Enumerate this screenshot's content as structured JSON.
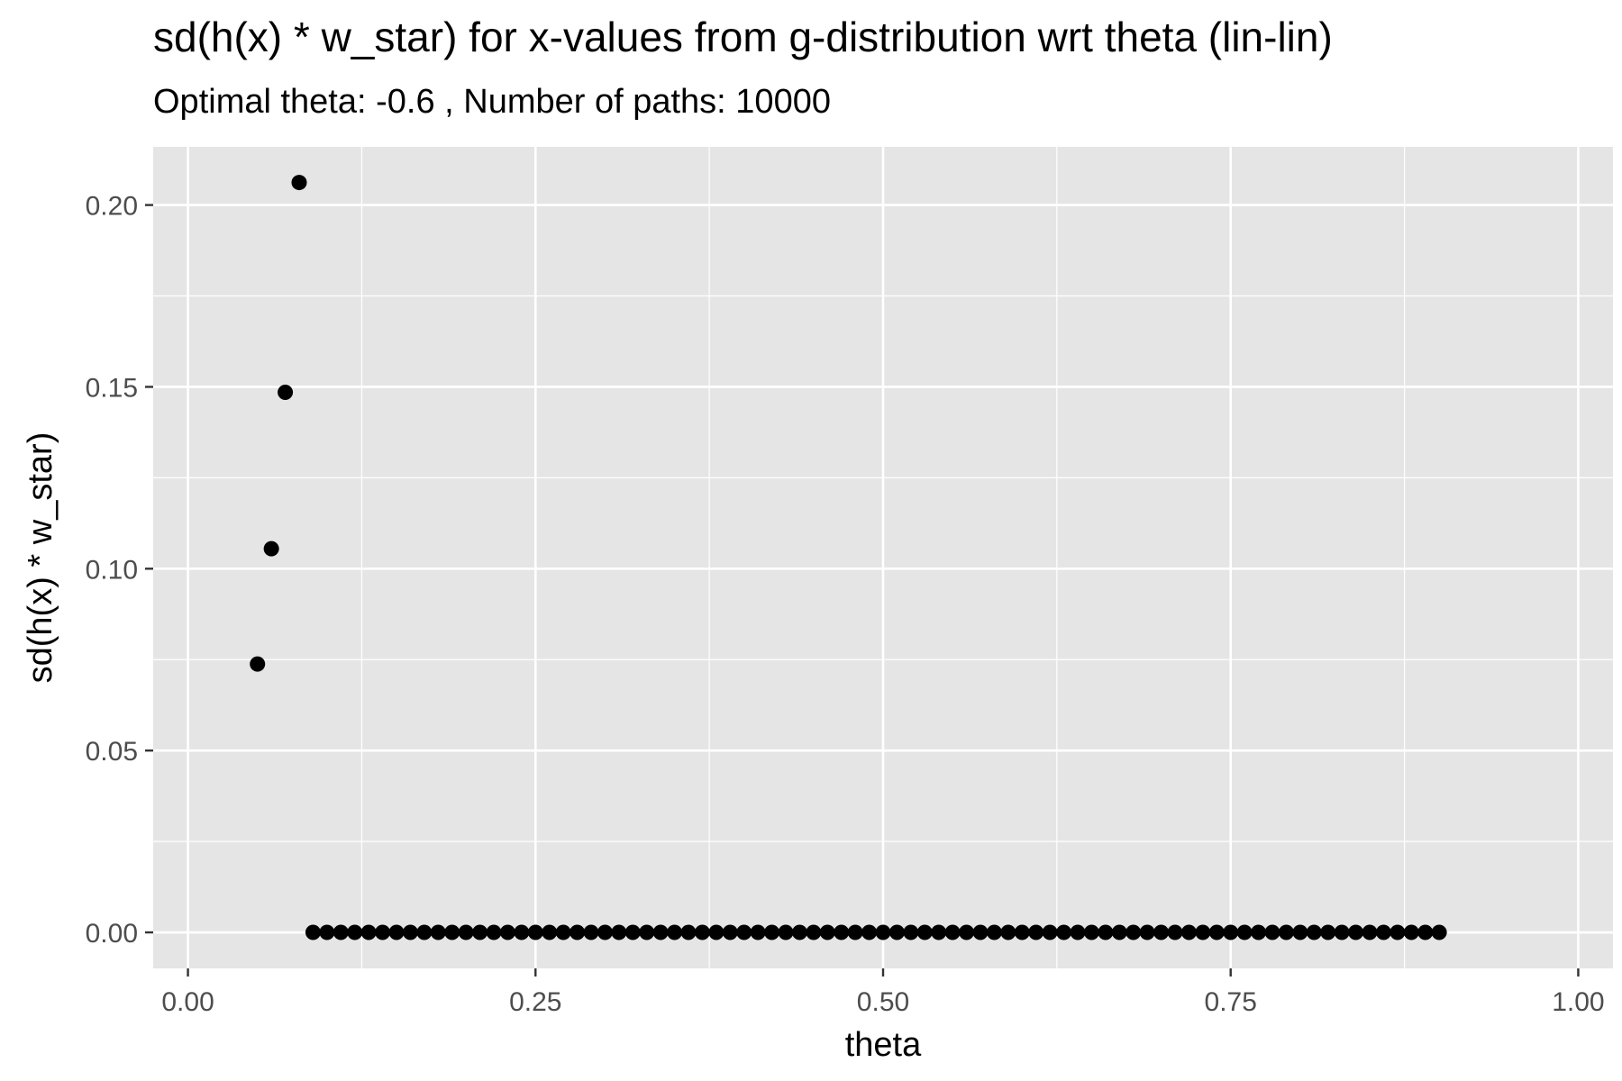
{
  "chart_data": {
    "type": "scatter",
    "title": "sd(h(x) * w_star) for x-values from g-distribution wrt theta (lin-lin)",
    "subtitle": "Optimal theta:  -0.6 , Number of paths:  10000",
    "xlabel": "theta",
    "ylabel": "sd(h(x) * w_star)",
    "xlim": [
      -0.025,
      1.025
    ],
    "ylim": [
      -0.0099,
      0.216
    ],
    "x_ticks": [
      0.0,
      0.25,
      0.5,
      0.75,
      1.0
    ],
    "x_tick_labels": [
      "0.00",
      "0.25",
      "0.50",
      "0.75",
      "1.00"
    ],
    "y_ticks": [
      0.0,
      0.05,
      0.1,
      0.15,
      0.2
    ],
    "y_tick_labels": [
      "0.00",
      "0.05",
      "0.10",
      "0.15",
      "0.20"
    ],
    "grid": true,
    "background": "#e5e5e5",
    "grid_color": "#ffffff",
    "point_color": "#000000",
    "points": [
      {
        "x": 0.05,
        "y": 0.0738
      },
      {
        "x": 0.06,
        "y": 0.1055
      },
      {
        "x": 0.07,
        "y": 0.1485
      },
      {
        "x": 0.08,
        "y": 0.2062
      },
      {
        "x": 0.09,
        "y": 0.0
      },
      {
        "x": 0.1,
        "y": 0.0
      },
      {
        "x": 0.11,
        "y": 0.0
      },
      {
        "x": 0.12,
        "y": 0.0
      },
      {
        "x": 0.13,
        "y": 0.0
      },
      {
        "x": 0.14,
        "y": 0.0
      },
      {
        "x": 0.15,
        "y": 0.0
      },
      {
        "x": 0.16,
        "y": 0.0
      },
      {
        "x": 0.17,
        "y": 0.0
      },
      {
        "x": 0.18,
        "y": 0.0
      },
      {
        "x": 0.19,
        "y": 0.0
      },
      {
        "x": 0.2,
        "y": 0.0
      },
      {
        "x": 0.21,
        "y": 0.0
      },
      {
        "x": 0.22,
        "y": 0.0
      },
      {
        "x": 0.23,
        "y": 0.0
      },
      {
        "x": 0.24,
        "y": 0.0
      },
      {
        "x": 0.25,
        "y": 0.0
      },
      {
        "x": 0.26,
        "y": 0.0
      },
      {
        "x": 0.27,
        "y": 0.0
      },
      {
        "x": 0.28,
        "y": 0.0
      },
      {
        "x": 0.29,
        "y": 0.0
      },
      {
        "x": 0.3,
        "y": 0.0
      },
      {
        "x": 0.31,
        "y": 0.0
      },
      {
        "x": 0.32,
        "y": 0.0
      },
      {
        "x": 0.33,
        "y": 0.0
      },
      {
        "x": 0.34,
        "y": 0.0
      },
      {
        "x": 0.35,
        "y": 0.0
      },
      {
        "x": 0.36,
        "y": 0.0
      },
      {
        "x": 0.37,
        "y": 0.0
      },
      {
        "x": 0.38,
        "y": 0.0
      },
      {
        "x": 0.39,
        "y": 0.0
      },
      {
        "x": 0.4,
        "y": 0.0
      },
      {
        "x": 0.41,
        "y": 0.0
      },
      {
        "x": 0.42,
        "y": 0.0
      },
      {
        "x": 0.43,
        "y": 0.0
      },
      {
        "x": 0.44,
        "y": 0.0
      },
      {
        "x": 0.45,
        "y": 0.0
      },
      {
        "x": 0.46,
        "y": 0.0
      },
      {
        "x": 0.47,
        "y": 0.0
      },
      {
        "x": 0.48,
        "y": 0.0
      },
      {
        "x": 0.49,
        "y": 0.0
      },
      {
        "x": 0.5,
        "y": 0.0
      },
      {
        "x": 0.51,
        "y": 0.0
      },
      {
        "x": 0.52,
        "y": 0.0
      },
      {
        "x": 0.53,
        "y": 0.0
      },
      {
        "x": 0.54,
        "y": 0.0
      },
      {
        "x": 0.55,
        "y": 0.0
      },
      {
        "x": 0.56,
        "y": 0.0
      },
      {
        "x": 0.57,
        "y": 0.0
      },
      {
        "x": 0.58,
        "y": 0.0
      },
      {
        "x": 0.59,
        "y": 0.0
      },
      {
        "x": 0.6,
        "y": 0.0
      },
      {
        "x": 0.61,
        "y": 0.0
      },
      {
        "x": 0.62,
        "y": 0.0
      },
      {
        "x": 0.63,
        "y": 0.0
      },
      {
        "x": 0.64,
        "y": 0.0
      },
      {
        "x": 0.65,
        "y": 0.0
      },
      {
        "x": 0.66,
        "y": 0.0
      },
      {
        "x": 0.67,
        "y": 0.0
      },
      {
        "x": 0.68,
        "y": 0.0
      },
      {
        "x": 0.69,
        "y": 0.0
      },
      {
        "x": 0.7,
        "y": 0.0
      },
      {
        "x": 0.71,
        "y": 0.0
      },
      {
        "x": 0.72,
        "y": 0.0
      },
      {
        "x": 0.73,
        "y": 0.0
      },
      {
        "x": 0.74,
        "y": 0.0
      },
      {
        "x": 0.75,
        "y": 0.0
      },
      {
        "x": 0.76,
        "y": 0.0
      },
      {
        "x": 0.77,
        "y": 0.0
      },
      {
        "x": 0.78,
        "y": 0.0
      },
      {
        "x": 0.79,
        "y": 0.0
      },
      {
        "x": 0.8,
        "y": 0.0
      },
      {
        "x": 0.81,
        "y": 0.0
      },
      {
        "x": 0.82,
        "y": 0.0
      },
      {
        "x": 0.83,
        "y": 0.0
      },
      {
        "x": 0.84,
        "y": 0.0
      },
      {
        "x": 0.85,
        "y": 0.0
      },
      {
        "x": 0.86,
        "y": 0.0
      },
      {
        "x": 0.87,
        "y": 0.0
      },
      {
        "x": 0.88,
        "y": 0.0
      },
      {
        "x": 0.89,
        "y": 0.0
      },
      {
        "x": 0.9,
        "y": 0.0
      }
    ]
  }
}
